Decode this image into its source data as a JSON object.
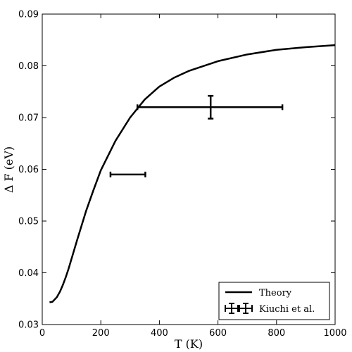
{
  "chart_data": {
    "type": "line",
    "xlabel": "T (K)",
    "ylabel": "Δ F (eV)",
    "xlim": [
      0,
      1000
    ],
    "ylim": [
      0.03,
      0.09
    ],
    "x_ticks": [
      0,
      200,
      400,
      600,
      800,
      1000
    ],
    "y_ticks": [
      0.03,
      0.04,
      0.05,
      0.06,
      0.07,
      0.08,
      0.09
    ],
    "x_tick_labels": [
      "0",
      "200",
      "400",
      "600",
      "800",
      "1000"
    ],
    "y_tick_labels": [
      "0.03",
      "0.04",
      "0.05",
      "0.06",
      "0.07",
      "0.08",
      "0.09"
    ],
    "grid": false,
    "legend_position": "bottom-right",
    "series": [
      {
        "name": "Theory",
        "kind": "line",
        "color": "#000000",
        "x": [
          25,
          35,
          50,
          60,
          70,
          80,
          90,
          100,
          120,
          150,
          175,
          200,
          250,
          300,
          350,
          400,
          450,
          500,
          600,
          700,
          800,
          900,
          1000
        ],
        "y": [
          0.0343,
          0.0344,
          0.0353,
          0.0363,
          0.0376,
          0.0391,
          0.0408,
          0.0427,
          0.0465,
          0.052,
          0.056,
          0.0598,
          0.0655,
          0.07,
          0.0735,
          0.076,
          0.0777,
          0.079,
          0.0809,
          0.0822,
          0.0831,
          0.0836,
          0.084
        ]
      },
      {
        "name": "Kiuchi et al.",
        "kind": "errorbar",
        "color": "#000000",
        "points": [
          {
            "x": 290,
            "y": 0.059,
            "xerr_low": 57,
            "xerr_high": 62,
            "yerr": 0.0
          },
          {
            "x": 575,
            "y": 0.072,
            "xerr_low": 250,
            "xerr_high": 245,
            "yerr": 0.0022
          }
        ]
      }
    ]
  }
}
